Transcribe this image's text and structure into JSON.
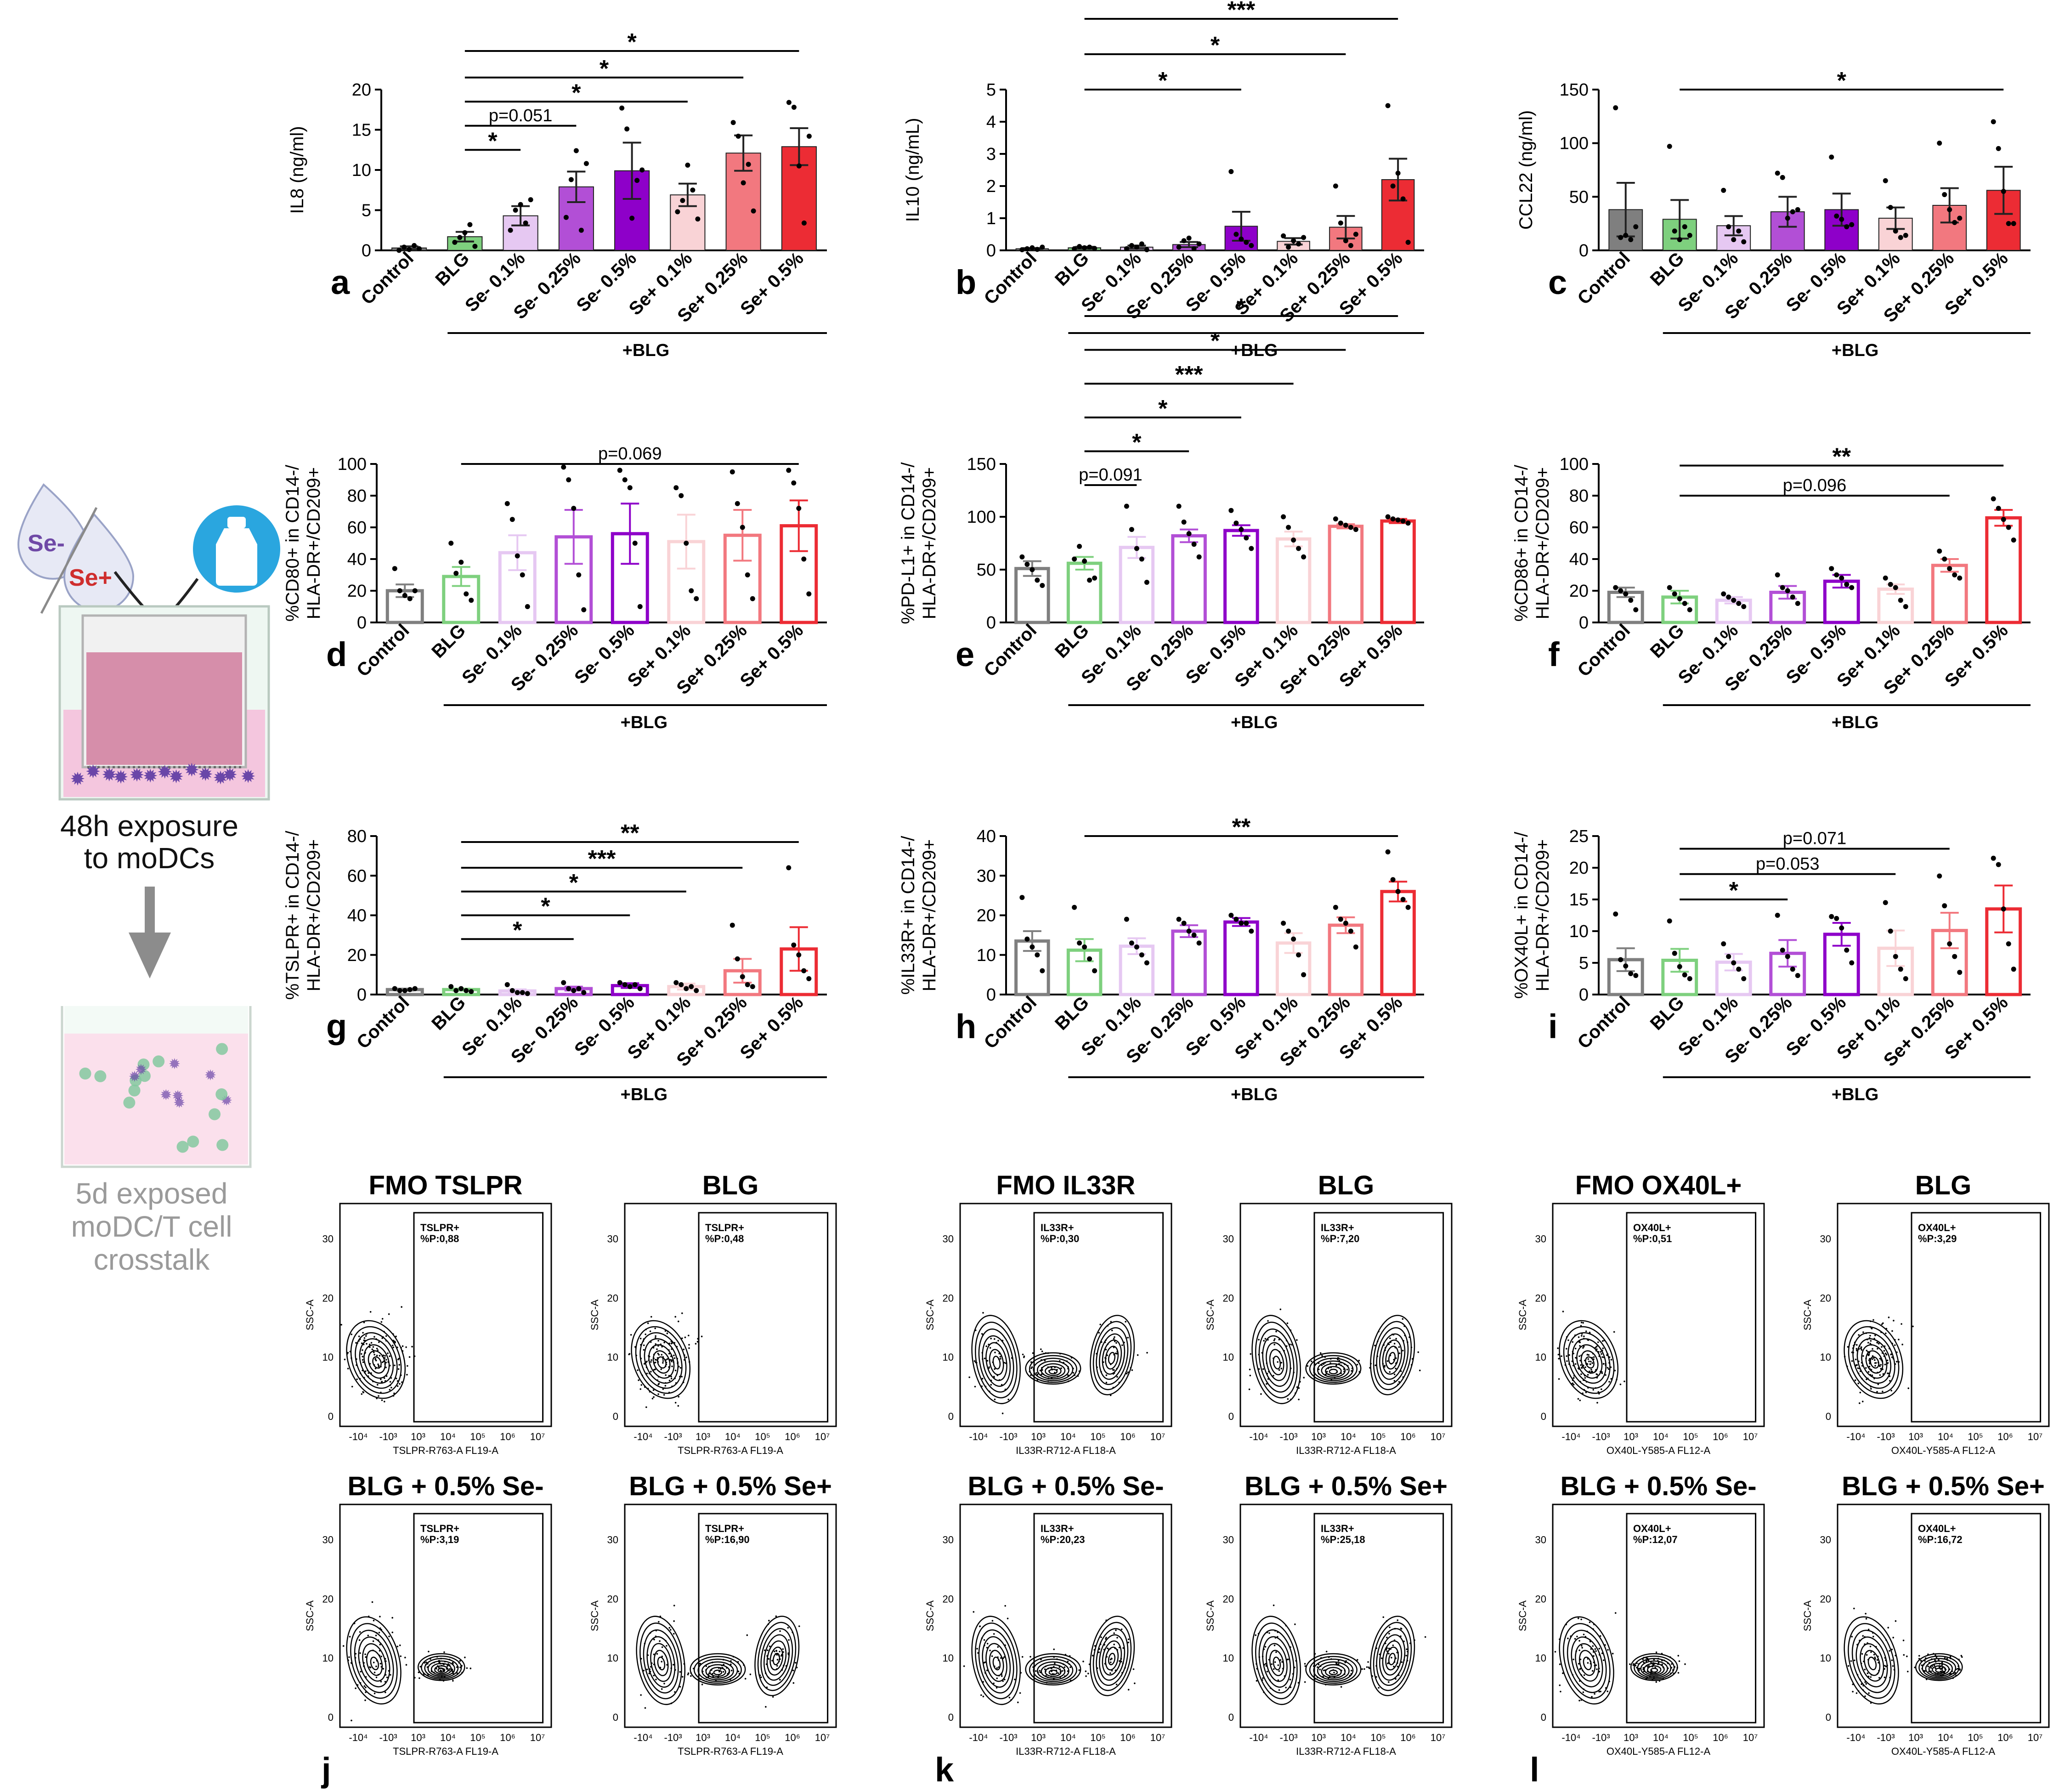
{
  "colors": {
    "control": "#7f7f7f",
    "blg": "#7ed07e",
    "se_01": "#e6c8f2",
    "se_025": "#b24fd6",
    "se_05": "#8e00c9",
    "sep_01": "#f9d3d6",
    "sep_025": "#f2787f",
    "sep_05": "#ec2c34",
    "cell_purple": "#6a46a8",
    "cell_green": "#84c8a0",
    "se_minus": "#6f49a6",
    "se_plus": "#cf2e2e",
    "pink": "#e8a6c4",
    "bottle_blue": "#2aa6df"
  },
  "categories": [
    "Control",
    "BLG",
    "Se- 0.1%",
    "Se- 0.25%",
    "Se- 0.5%",
    "Se+ 0.1%",
    "Se+ 0.25%",
    "Se+ 0.5%"
  ],
  "treatment_label": "+BLG",
  "schematic": {
    "se_minus": "Se-",
    "se_plus": "Se+",
    "step1_line1": "48h exposure",
    "step1_line2": "to moDCs",
    "step2_line1": "5d exposed",
    "step2_line2": "moDC/T cell",
    "step2_line3": "crosstalk",
    "icons": [
      "drop-icon",
      "bottle-icon",
      "arrow-icon",
      "transwell-icon",
      "well-icon"
    ]
  },
  "chart_data": [
    {
      "panel": "a",
      "type": "bar",
      "ylabel": "IL8 (ng/ml)",
      "ylim": [
        0,
        20
      ],
      "yticks": [
        0,
        5,
        10,
        15,
        20
      ],
      "fill": "solid",
      "values": [
        0.3,
        1.7,
        4.3,
        7.9,
        9.9,
        6.9,
        12.1,
        12.9
      ],
      "sem": [
        0.2,
        0.6,
        1.2,
        1.9,
        3.5,
        1.4,
        2.2,
        2.3
      ],
      "points": [
        [
          0,
          0.4,
          0.1,
          0.6,
          0.2
        ],
        [
          1,
          1.6,
          2.2,
          3.2,
          0.5
        ],
        [
          2.5,
          5.0,
          5.7,
          3.4,
          6.3
        ],
        [
          4.1,
          8.8,
          12.4,
          2.5,
          10.8
        ],
        [
          17.7,
          15.1,
          4.0,
          8.7,
          10.0
        ],
        [
          4.8,
          6.2,
          10.6,
          7.5,
          3.9
        ],
        [
          15.9,
          14.2,
          8.4,
          10.7,
          4.9
        ],
        [
          18.4,
          17.8,
          10.5,
          3.4,
          14.2
        ]
      ],
      "sig": [
        {
          "from": 1,
          "to": 2,
          "label": "*",
          "y": 12.5
        },
        {
          "from": 1,
          "to": 3,
          "label": "p=0.051",
          "y": 15.5
        },
        {
          "from": 1,
          "to": 5,
          "label": "*",
          "y": 18.5
        },
        {
          "from": 1,
          "to": 6,
          "label": "*",
          "y": 21.5
        },
        {
          "from": 1,
          "to": 7,
          "label": "*",
          "y": 24.8
        }
      ]
    },
    {
      "panel": "b",
      "type": "bar",
      "ylabel": "IL10 (ng/mL)",
      "ylim": [
        0,
        5
      ],
      "yticks": [
        0,
        1,
        2,
        3,
        4,
        5
      ],
      "fill": "solid",
      "values": [
        0.05,
        0.08,
        0.1,
        0.18,
        0.75,
        0.28,
        0.72,
        2.2
      ],
      "sem": [
        0.02,
        0.03,
        0.05,
        0.08,
        0.45,
        0.1,
        0.35,
        0.65
      ],
      "points": [
        [
          0.02,
          0.05,
          0.08,
          0.03,
          0.1
        ],
        [
          0.05,
          0.12,
          0.08,
          0.1,
          0.06
        ],
        [
          0.05,
          0.15,
          0.1,
          0.2,
          0.02
        ],
        [
          0.1,
          0.3,
          0.38,
          0.05,
          0.2
        ],
        [
          2.45,
          0.5,
          0.35,
          0.25,
          0.15
        ],
        [
          0.45,
          0.1,
          0.3,
          0.2,
          0.4
        ],
        [
          2.0,
          0.85,
          0.3,
          0.15,
          0.5
        ],
        [
          4.5,
          2.0,
          2.4,
          1.6,
          0.25
        ]
      ],
      "sig": [
        {
          "from": 1,
          "to": 4,
          "label": "*",
          "y": 5.0
        },
        {
          "from": 1,
          "to": 6,
          "label": "*",
          "y": 6.1
        },
        {
          "from": 1,
          "to": 7,
          "label": "***",
          "y": 7.2
        }
      ]
    },
    {
      "panel": "c",
      "type": "bar",
      "ylabel": "CCL22 (ng/ml)",
      "ylim": [
        0,
        150
      ],
      "yticks": [
        0,
        50,
        100,
        150
      ],
      "fill": "solid",
      "values": [
        38,
        29,
        23,
        36,
        38,
        30,
        42,
        56
      ],
      "sem": [
        25,
        18,
        9,
        14,
        15,
        10,
        16,
        22
      ],
      "points": [
        [
          133,
          12,
          14,
          10,
          22
        ],
        [
          97,
          18,
          10,
          22,
          14
        ],
        [
          56,
          22,
          10,
          18,
          8
        ],
        [
          72,
          68,
          30,
          36,
          38
        ],
        [
          87,
          32,
          29,
          22,
          24
        ],
        [
          65,
          40,
          18,
          12,
          14
        ],
        [
          100,
          52,
          38,
          26,
          30
        ],
        [
          120,
          95,
          55,
          25,
          25
        ]
      ],
      "sig": [
        {
          "from": 1,
          "to": 7,
          "label": "*",
          "y": 150
        }
      ]
    },
    {
      "panel": "d",
      "type": "bar",
      "ylabel": "%CD80+ in CD14-/ HLA-DR+/CD209+",
      "ylim": [
        0,
        100
      ],
      "yticks": [
        0,
        20,
        40,
        60,
        80,
        100
      ],
      "fill": "outline",
      "values": [
        20,
        29,
        44,
        54,
        56,
        51,
        55,
        61
      ],
      "sem": [
        4,
        6,
        11,
        17,
        19,
        17,
        16,
        16
      ],
      "points": [
        [
          34,
          20,
          17,
          15,
          20
        ],
        [
          50,
          31,
          38,
          18,
          14
        ],
        [
          75,
          65,
          42,
          30,
          10
        ],
        [
          98,
          90,
          72,
          30,
          8
        ],
        [
          96,
          90,
          85,
          50,
          10
        ],
        [
          85,
          80,
          50,
          20,
          15
        ],
        [
          95,
          75,
          60,
          30,
          15
        ],
        [
          96,
          88,
          72,
          40,
          18
        ]
      ],
      "sig": [
        {
          "from": 1,
          "to": 7,
          "label": "p=0.069",
          "y": 100
        }
      ]
    },
    {
      "panel": "e",
      "type": "bar",
      "ylabel": "%PD-L1+ in CD14-/ HLA-DR+/CD209+",
      "ylim": [
        0,
        150
      ],
      "yticks": [
        0,
        50,
        100,
        150
      ],
      "fill": "outline",
      "values": [
        51,
        56,
        71,
        82,
        87,
        79,
        91,
        96
      ],
      "sem": [
        7,
        6,
        10,
        6,
        5,
        7,
        2,
        2
      ],
      "points": [
        [
          62,
          55,
          50,
          40,
          35
        ],
        [
          60,
          72,
          58,
          40,
          42
        ],
        [
          110,
          88,
          70,
          60,
          38
        ],
        [
          110,
          95,
          84,
          74,
          62
        ],
        [
          106,
          94,
          88,
          80,
          70
        ],
        [
          100,
          90,
          78,
          70,
          62
        ],
        [
          98,
          94,
          92,
          90,
          88
        ],
        [
          100,
          98,
          97,
          96,
          94
        ]
      ],
      "sig": [
        {
          "from": 1,
          "to": 2,
          "label": "p=0.091",
          "y": 130
        },
        {
          "from": 1,
          "to": 3,
          "label": "*",
          "y": 162
        },
        {
          "from": 1,
          "to": 4,
          "label": "*",
          "y": 194
        },
        {
          "from": 1,
          "to": 5,
          "label": "***",
          "y": 226
        },
        {
          "from": 1,
          "to": 6,
          "label": "*",
          "y": 258
        },
        {
          "from": 1,
          "to": 7,
          "label": "*",
          "y": 290
        }
      ]
    },
    {
      "panel": "f",
      "type": "bar",
      "ylabel": "%CD86+ in CD14-/ HLA-DR+/CD209+",
      "ylim": [
        0,
        100
      ],
      "yticks": [
        0,
        20,
        40,
        60,
        80,
        100
      ],
      "fill": "outline",
      "values": [
        19,
        16,
        14,
        19,
        26,
        21,
        36,
        66
      ],
      "sem": [
        3,
        4,
        2,
        4,
        4,
        3,
        4,
        5
      ],
      "points": [
        [
          22,
          20,
          18,
          14,
          8
        ],
        [
          22,
          18,
          15,
          12,
          8
        ],
        [
          18,
          16,
          14,
          12,
          10
        ],
        [
          30,
          22,
          20,
          16,
          12
        ],
        [
          34,
          30,
          28,
          24,
          22
        ],
        [
          28,
          24,
          22,
          14,
          10
        ],
        [
          45,
          40,
          34,
          30,
          28
        ],
        [
          78,
          72,
          65,
          60,
          52
        ]
      ],
      "sig": [
        {
          "from": 1,
          "to": 6,
          "label": "p=0.096",
          "y": 80
        },
        {
          "from": 1,
          "to": 7,
          "label": "**",
          "y": 99
        }
      ]
    },
    {
      "panel": "g",
      "type": "bar",
      "ylabel": "%TSLPR+ in CD14-/ HLA-DR+/CD209+",
      "ylim": [
        0,
        80
      ],
      "yticks": [
        0,
        20,
        40,
        60,
        80
      ],
      "fill": "outline",
      "values": [
        2.5,
        2.5,
        1.8,
        3.0,
        4.5,
        4.0,
        12,
        23
      ],
      "sem": [
        0.5,
        0.5,
        0.8,
        1.0,
        1.2,
        1.5,
        6,
        11
      ],
      "points": [
        [
          3,
          2,
          2,
          2.5,
          3
        ],
        [
          4,
          2,
          3,
          2,
          1.5
        ],
        [
          5,
          2,
          1,
          1,
          0.5
        ],
        [
          6,
          3,
          2,
          3,
          1
        ],
        [
          6,
          5,
          4,
          5,
          3
        ],
        [
          6,
          5,
          3,
          4,
          2
        ],
        [
          35,
          18,
          9,
          5,
          4
        ],
        [
          64,
          25,
          20,
          12,
          8
        ]
      ],
      "sig": [
        {
          "from": 1,
          "to": 3,
          "label": "*",
          "y": 28
        },
        {
          "from": 1,
          "to": 4,
          "label": "*",
          "y": 40
        },
        {
          "from": 1,
          "to": 5,
          "label": "*",
          "y": 52
        },
        {
          "from": 1,
          "to": 6,
          "label": "***",
          "y": 64
        },
        {
          "from": 1,
          "to": 7,
          "label": "**",
          "y": 77
        }
      ]
    },
    {
      "panel": "h",
      "type": "bar",
      "ylabel": "%IL33R+ in CD14-/ HLA-DR+/CD209+",
      "ylim": [
        0,
        40
      ],
      "yticks": [
        0,
        10,
        20,
        30,
        40
      ],
      "fill": "outline",
      "values": [
        13.5,
        11.2,
        12.2,
        16.0,
        18.3,
        13.0,
        17.5,
        26.0
      ],
      "sem": [
        2.5,
        2.8,
        2.0,
        1.5,
        1.0,
        2.5,
        2.0,
        2.5
      ],
      "points": [
        [
          24.5,
          14,
          12,
          10,
          6
        ],
        [
          22,
          13,
          12,
          9,
          6
        ],
        [
          19,
          13,
          12,
          10,
          8
        ],
        [
          19,
          18,
          16,
          15,
          13
        ],
        [
          20,
          19,
          18,
          18,
          16
        ],
        [
          18,
          16,
          14,
          10,
          5
        ],
        [
          22,
          19,
          18,
          16,
          12
        ],
        [
          36,
          29,
          26,
          24,
          22
        ]
      ],
      "sig": [
        {
          "from": 1,
          "to": 7,
          "label": "**",
          "y": 40
        }
      ]
    },
    {
      "panel": "i",
      "type": "bar",
      "ylabel": "%OX40L+ in CD14-/ HLA-DR+/CD209+",
      "ylim": [
        0,
        25
      ],
      "yticks": [
        0,
        5,
        10,
        15,
        20,
        25
      ],
      "fill": "outline",
      "values": [
        5.5,
        5.4,
        5.1,
        6.5,
        9.5,
        7.3,
        10.1,
        13.5
      ],
      "sem": [
        1.8,
        1.8,
        1.3,
        2.1,
        1.8,
        2.8,
        2.8,
        3.7
      ],
      "points": [
        [
          12.7,
          5.5,
          4.5,
          3.3,
          3.0
        ],
        [
          11.6,
          6.5,
          4.4,
          3.1,
          2.5
        ],
        [
          8,
          6,
          5,
          4,
          2.5
        ],
        [
          12.5,
          7,
          6,
          4,
          3
        ],
        [
          12.3,
          12,
          10.5,
          7,
          5
        ],
        [
          14.5,
          10,
          6,
          4,
          2.5
        ],
        [
          18.7,
          14,
          8,
          6,
          3.5
        ],
        [
          21.5,
          20.5,
          13.5,
          8,
          4
        ]
      ],
      "sig": [
        {
          "from": 1,
          "to": 3,
          "label": "*",
          "y": 15
        },
        {
          "from": 1,
          "to": 5,
          "label": "p=0.053",
          "y": 19
        },
        {
          "from": 1,
          "to": 6,
          "label": "p=0.071",
          "y": 23
        }
      ]
    }
  ],
  "flow_plots": [
    {
      "group": "j",
      "title": "FMO TSLPR",
      "gate": "TSLPR+",
      "pct": "%P:0,88",
      "xlabel": "TSLPR-R763-A FL19-A",
      "ylabel": "SSC-A",
      "shape": "fmo"
    },
    {
      "group": "j",
      "title": "BLG",
      "gate": "TSLPR+",
      "pct": "%P:0,48",
      "xlabel": "TSLPR-R763-A FL19-A",
      "ylabel": "SSC-A",
      "shape": "fmo"
    },
    {
      "group": "k",
      "title": "FMO IL33R",
      "gate": "IL33R+",
      "pct": "%P:0,30",
      "xlabel": "IL33R-R712-A FL18-A",
      "ylabel": "SSC-A",
      "shape": "bimodal"
    },
    {
      "group": "k",
      "title": "BLG",
      "gate": "IL33R+",
      "pct": "%P:7,20",
      "xlabel": "IL33R-R712-A FL18-A",
      "ylabel": "SSC-A",
      "shape": "bimodal"
    },
    {
      "group": "l",
      "title": "FMO OX40L+",
      "gate": "OX40L+",
      "pct": "%P:0,51",
      "xlabel": "OX40L-Y585-A FL12-A",
      "ylabel": "SSC-A",
      "shape": "fmo"
    },
    {
      "group": "l",
      "title": "BLG",
      "gate": "OX40L+",
      "pct": "%P:3,29",
      "xlabel": "OX40L-Y585-A FL12-A",
      "ylabel": "SSC-A",
      "shape": "fmo"
    },
    {
      "group": "j",
      "title": "BLG + 0.5% Se-",
      "gate": "TSLPR+",
      "pct": "%P:3,19",
      "xlabel": "TSLPR-R763-A FL19-A",
      "ylabel": "SSC-A",
      "shape": "tail"
    },
    {
      "group": "j",
      "title": "BLG + 0.5% Se+",
      "gate": "TSLPR+",
      "pct": "%P:16,90",
      "xlabel": "TSLPR-R763-A FL19-A",
      "ylabel": "SSC-A",
      "shape": "bimodal"
    },
    {
      "group": "k",
      "title": "BLG + 0.5% Se-",
      "gate": "IL33R+",
      "pct": "%P:20,23",
      "xlabel": "IL33R-R712-A FL18-A",
      "ylabel": "SSC-A",
      "shape": "bimodal"
    },
    {
      "group": "k",
      "title": "BLG + 0.5% Se+",
      "gate": "IL33R+",
      "pct": "%P:25,18",
      "xlabel": "IL33R-R712-A FL18-A",
      "ylabel": "SSC-A",
      "shape": "bimodal"
    },
    {
      "group": "l",
      "title": "BLG + 0.5% Se-",
      "gate": "OX40L+",
      "pct": "%P:12,07",
      "xlabel": "OX40L-Y585-A FL12-A",
      "ylabel": "SSC-A",
      "shape": "tail"
    },
    {
      "group": "l",
      "title": "BLG + 0.5% Se+",
      "gate": "OX40L+",
      "pct": "%P:16,72",
      "xlabel": "OX40L-Y585-A FL12-A",
      "ylabel": "SSC-A",
      "shape": "tail"
    }
  ],
  "flow_axes": {
    "yticks": [
      "0",
      "10",
      "20",
      "30"
    ],
    "xticks": [
      "-10⁴",
      "-10³",
      "10³",
      "10⁴",
      "10⁵",
      "10⁶",
      "10⁷"
    ]
  },
  "flow_panel_letters": [
    "j",
    "k",
    "l"
  ]
}
